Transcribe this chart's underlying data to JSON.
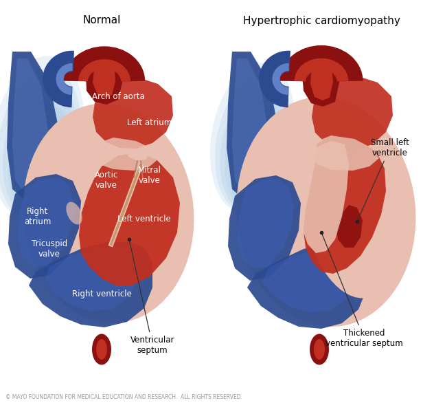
{
  "title_left": "Normal",
  "title_right": "Hypertrophic cardiomyopathy",
  "label_arch": "Arch of aorta",
  "label_la": "Left atrium",
  "label_av": "Aortic\nvalve",
  "label_mv": "Mitral\nvalve",
  "label_ra": "Right\natrium",
  "label_tv": "Tricuspid\nvalve",
  "label_lv": "Left ventricle",
  "label_rv": "Right ventricle",
  "label_vs": "Ventricular\nseptum",
  "label_slv": "Small left\nventricle",
  "label_tvs": "Thickened\nventricular septum",
  "copyright": "© MAYO FOUNDATION FOR MEDICAL EDUCATION AND RESEARCH.  ALL RIGHTS RESERVED.",
  "c_outer": "#E8BFB0",
  "c_red": "#C03020",
  "c_dark_red": "#8B1010",
  "c_blue_dark": "#2B4A90",
  "c_blue_med": "#3B60B8",
  "c_blue_light": "#6080C8",
  "c_blue_glow": "#90B8E0",
  "c_white": "#ffffff",
  "title_fs": 11,
  "label_fs": 8.5,
  "copy_fs": 5.5
}
